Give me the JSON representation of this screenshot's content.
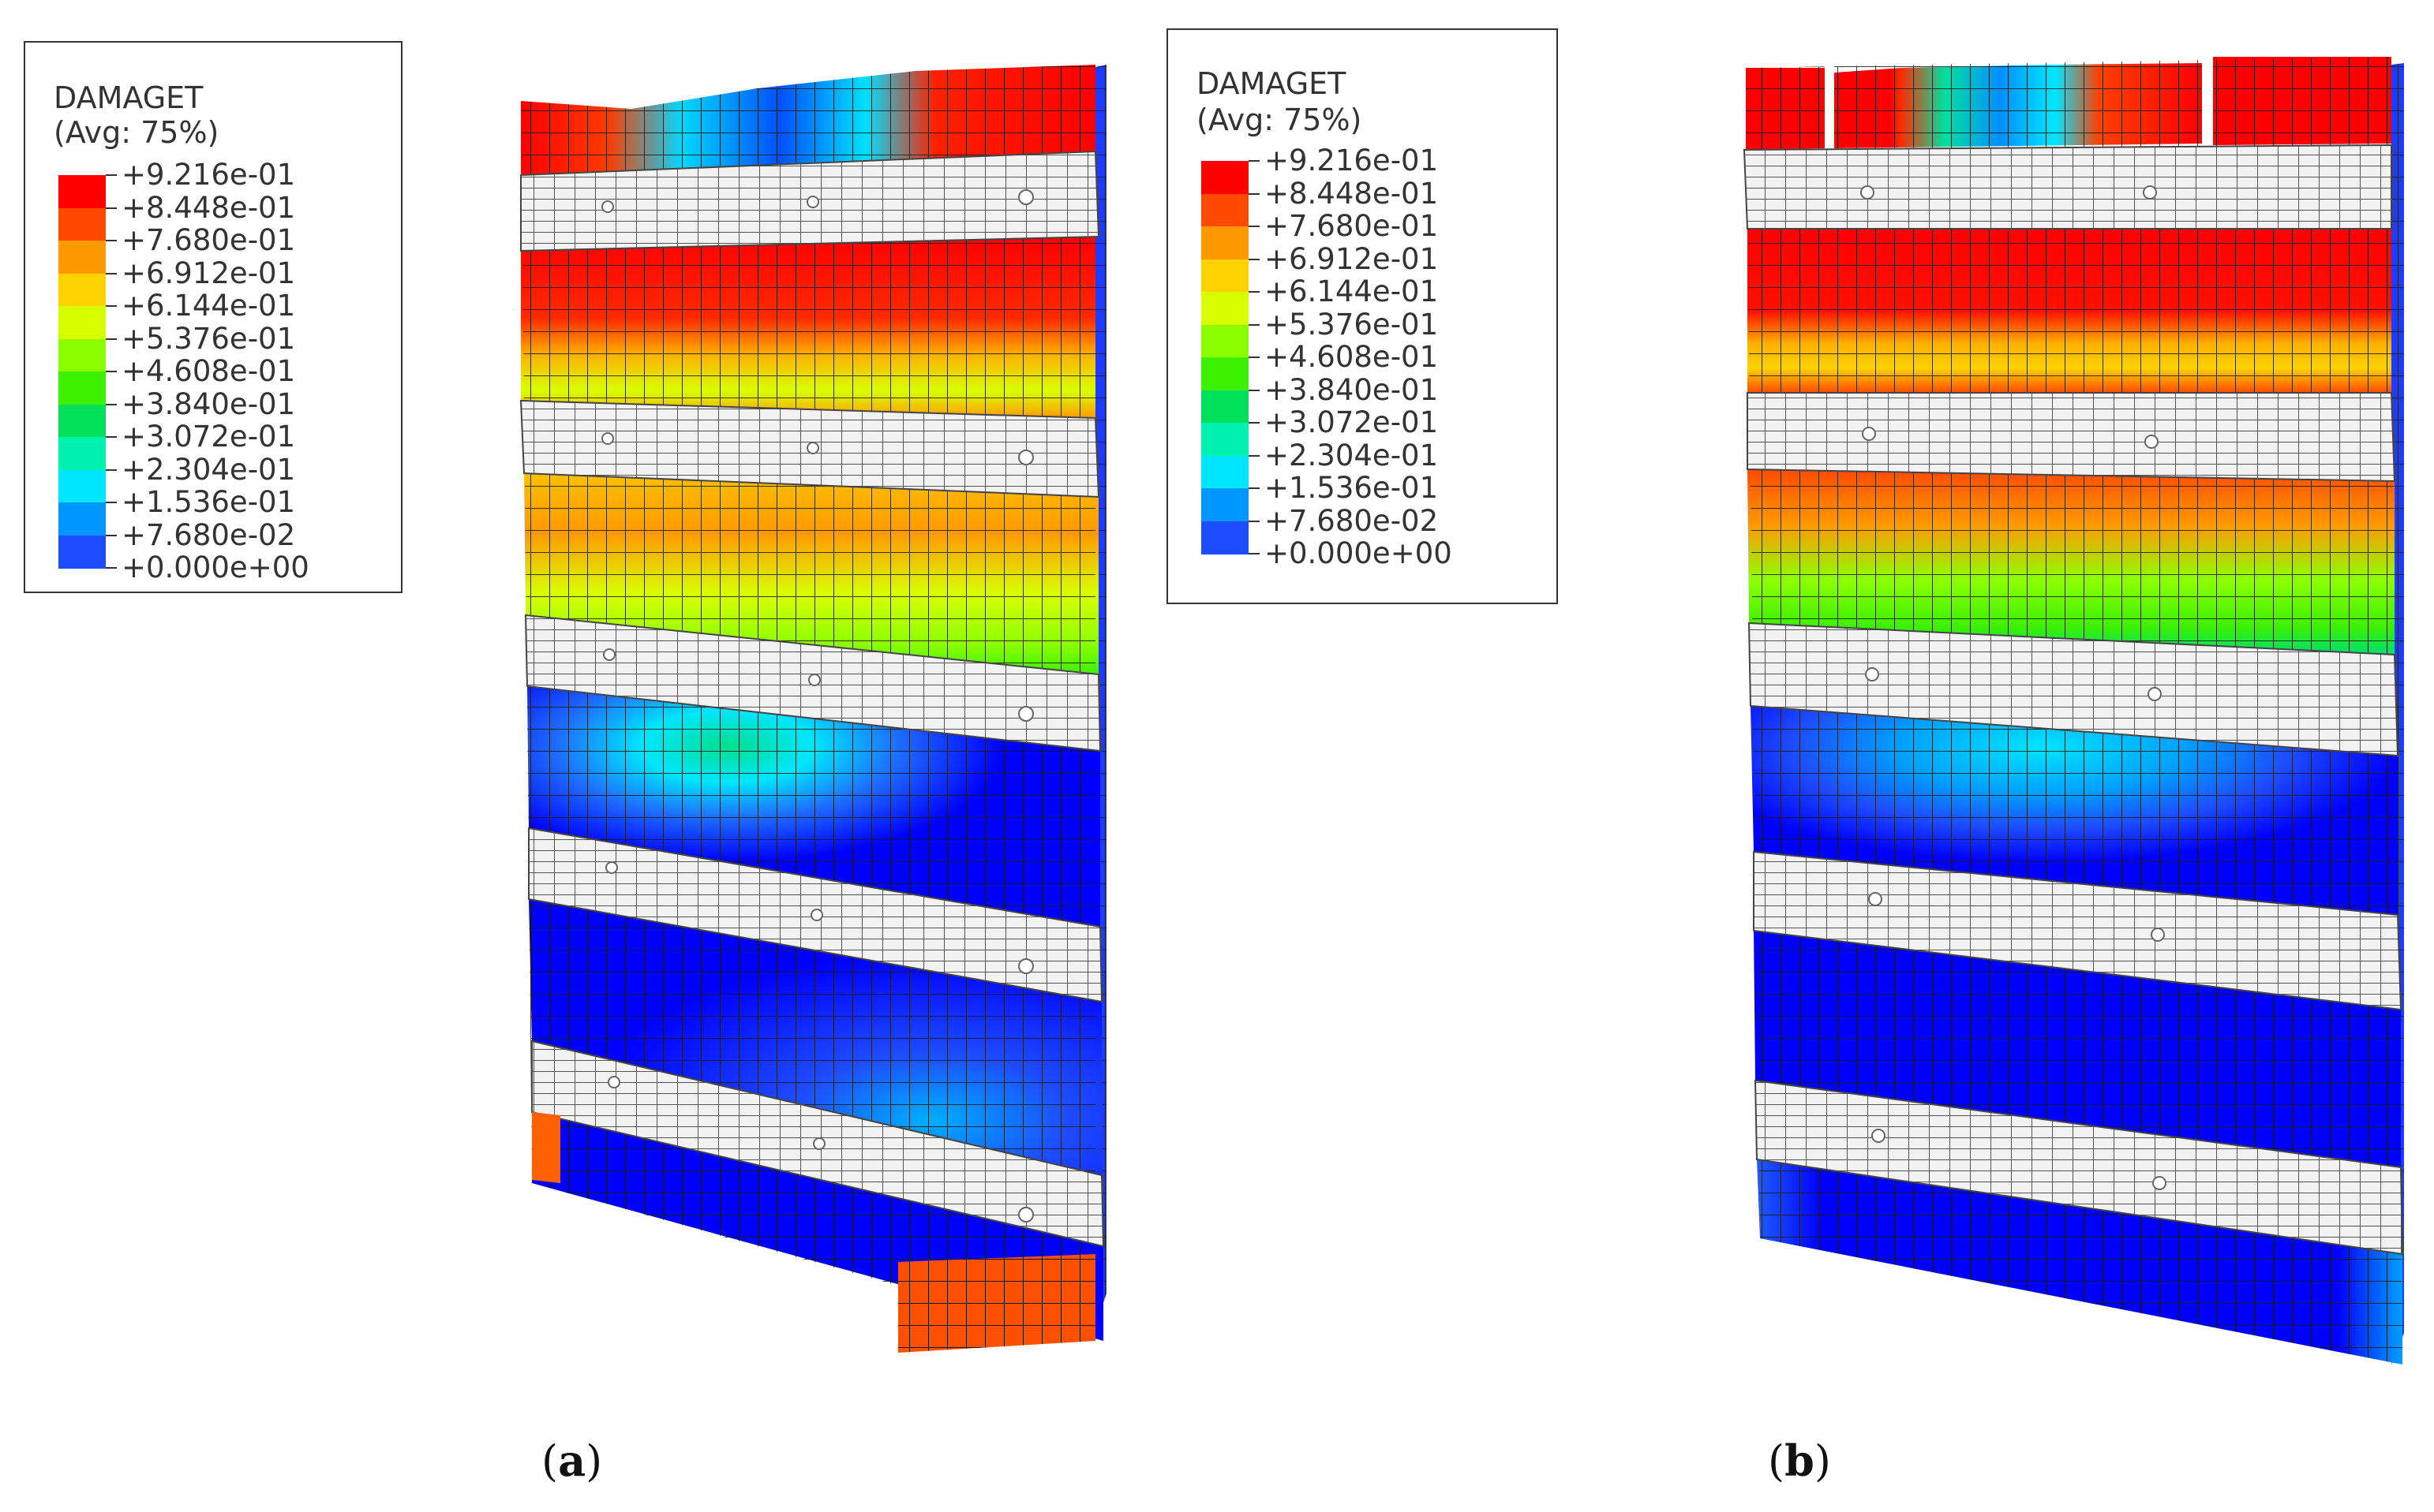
{
  "legend": {
    "title_line1": "DAMAGET",
    "title_line2": "(Avg: 75%)",
    "entries": [
      {
        "label": "+9.216e-01",
        "color": "#ff0000"
      },
      {
        "label": "+8.448e-01",
        "color": "#ff4a00"
      },
      {
        "label": "+7.680e-01",
        "color": "#ff9900"
      },
      {
        "label": "+6.912e-01",
        "color": "#ffd200"
      },
      {
        "label": "+6.144e-01",
        "color": "#d8ff00"
      },
      {
        "label": "+5.376e-01",
        "color": "#8cff00"
      },
      {
        "label": "+4.608e-01",
        "color": "#3cf000"
      },
      {
        "label": "+3.840e-01",
        "color": "#00e05a"
      },
      {
        "label": "+3.072e-01",
        "color": "#00f0b0"
      },
      {
        "label": "+2.304e-01",
        "color": "#00e6ff"
      },
      {
        "label": "+1.536e-01",
        "color": "#0096ff"
      },
      {
        "label": "+7.680e-02",
        "color": "#1e4cff"
      },
      {
        "label": "+0.000e+00",
        "color": "#0000ff"
      }
    ]
  },
  "panels": [
    {
      "open": "(",
      "letter": "a",
      "close": ")"
    },
    {
      "open": "(",
      "letter": "b",
      "close": ")"
    }
  ]
}
